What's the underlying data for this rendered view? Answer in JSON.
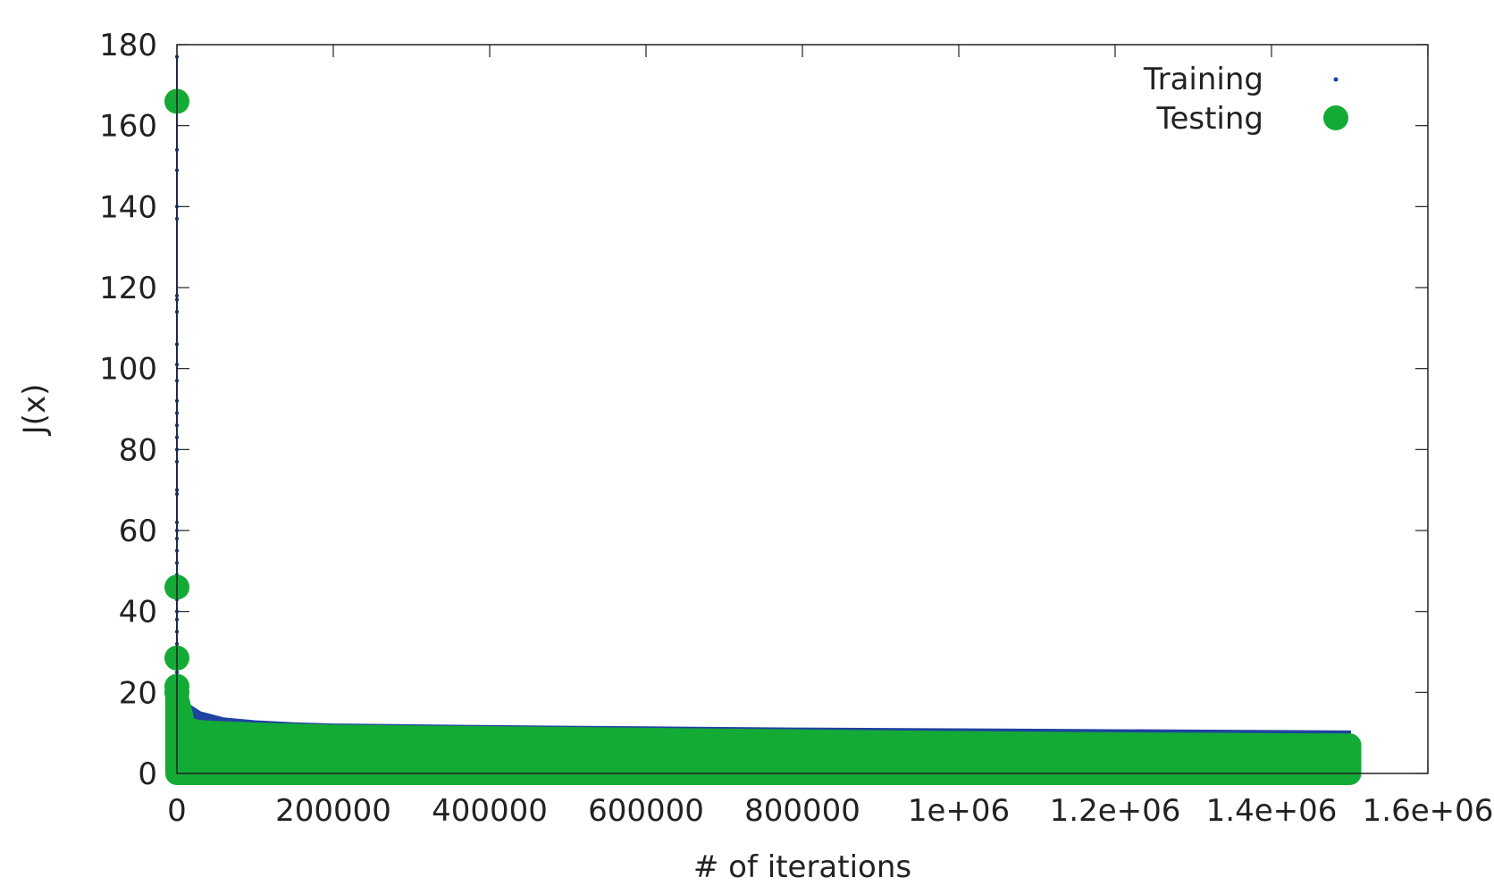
{
  "chart_data": {
    "type": "scatter",
    "title": "",
    "xlabel": "# of iterations",
    "ylabel": "J(x)",
    "xlim": [
      0,
      1600000
    ],
    "ylim": [
      0,
      180
    ],
    "x_tick_values": [
      0,
      200000,
      400000,
      600000,
      800000,
      1000000,
      1200000,
      1400000,
      1600000
    ],
    "x_tick_labels": [
      "0",
      "200000",
      "400000",
      "600000",
      "800000",
      "1e+06",
      "1.2e+06",
      "1.4e+06",
      "1.6e+06"
    ],
    "y_tick_values": [
      0,
      20,
      40,
      60,
      80,
      100,
      120,
      140,
      160,
      180
    ],
    "y_tick_labels": [
      "0",
      "20",
      "40",
      "60",
      "80",
      "100",
      "120",
      "140",
      "160",
      "180"
    ],
    "grid": false,
    "legend_position": "top-right",
    "series": [
      {
        "name": "Training",
        "color": "#1f43a0",
        "marker": "small-dot",
        "spike_x": 0,
        "spike_values": [
          177,
          166,
          154,
          149,
          140,
          137,
          118,
          117,
          114,
          106,
          101,
          97,
          92,
          89,
          86,
          83,
          80,
          77,
          70,
          69,
          62,
          60,
          58,
          55,
          52,
          49,
          46,
          43,
          40,
          38,
          35,
          32,
          29,
          27,
          25,
          22,
          21,
          19
        ],
        "band_upper_x": [
          0,
          10000,
          30000,
          60000,
          100000,
          150000,
          200000,
          400000,
          600000,
          800000,
          1000000,
          1200000,
          1400000,
          1500000
        ],
        "band_upper_y": [
          21,
          17.5,
          15,
          13.5,
          12.8,
          12.3,
          12,
          11.6,
          11.3,
          11,
          10.8,
          10.6,
          10.4,
          10.3
        ],
        "band_lower_y": 0
      },
      {
        "name": "Testing",
        "color": "#14aa36",
        "marker": "large-circle",
        "points_x": [
          0,
          0,
          0,
          0,
          0
        ],
        "points_y": [
          166,
          46,
          28.5,
          21.5,
          20
        ],
        "band_upper_x": [
          0,
          10000,
          30000,
          60000,
          100000,
          200000,
          400000,
          600000,
          800000,
          1000000,
          1200000,
          1400000,
          1500000
        ],
        "band_upper_y": [
          19,
          11,
          10.3,
          10,
          9.7,
          9.2,
          8.8,
          8.4,
          8,
          7.6,
          7.3,
          7.1,
          7
        ],
        "band_lower_y": 0
      }
    ]
  }
}
